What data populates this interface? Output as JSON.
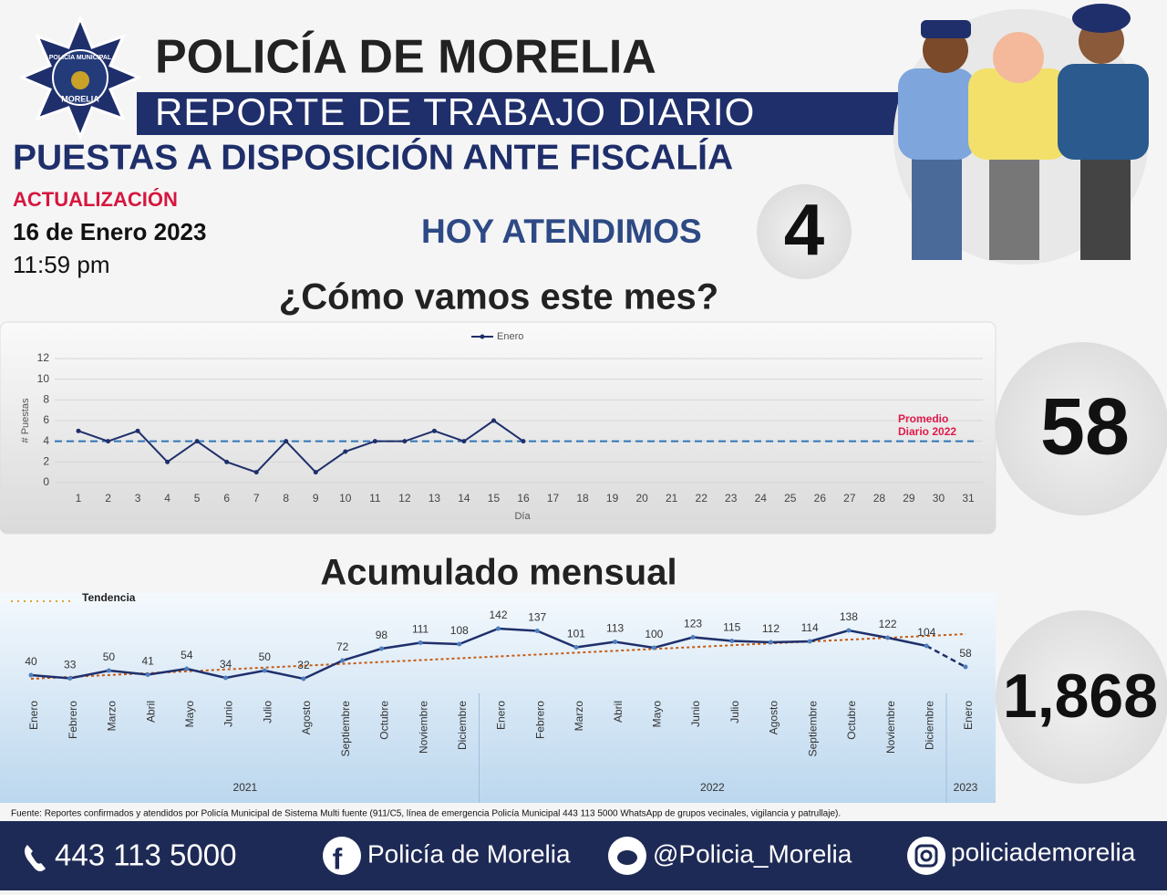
{
  "header": {
    "badge_top": "POLICÍA MUNICIPAL",
    "badge_bottom": "MORELIA",
    "title": "POLICÍA DE MORELIA",
    "subtitle": "REPORTE DE TRABAJO DIARIO",
    "heading": "PUESTAS A DISPOSICIÓN ANTE FISCALÍA",
    "update_label": "ACTUALIZACIÓN",
    "date": "16 de Enero 2023",
    "time": "11:59 pm",
    "today_label": "HOY ATENDIMOS",
    "today_value": 4
  },
  "chart_data": [
    {
      "type": "line",
      "title": "¿Cómo vamos este mes?",
      "x_label": "Día",
      "y_label": "# Puestas",
      "categories": [
        1,
        2,
        3,
        4,
        5,
        6,
        7,
        8,
        9,
        10,
        11,
        12,
        13,
        14,
        15,
        16,
        17,
        18,
        19,
        20,
        21,
        22,
        23,
        24,
        25,
        26,
        27,
        28,
        29,
        30,
        31
      ],
      "series": [
        {
          "name": "Enero",
          "color": "#1f2f6b",
          "values": [
            5,
            4,
            5,
            2,
            4,
            2,
            1,
            4,
            1,
            3,
            4,
            4,
            5,
            4,
            6,
            4,
            null,
            null,
            null,
            null,
            null,
            null,
            null,
            null,
            null,
            null,
            null,
            null,
            null,
            null,
            null
          ]
        }
      ],
      "ylim": [
        0,
        12
      ],
      "yticks": [
        0,
        2,
        4,
        6,
        8,
        10,
        12
      ],
      "grid": true,
      "legend": "top",
      "reference_line": {
        "value": 4,
        "label": "Promedio Diario 2022",
        "color": "#2e75b6",
        "label_color": "#e0194a"
      },
      "total": 58
    },
    {
      "type": "line",
      "title": "Acumulado mensual",
      "categories": [
        "Enero",
        "Febrero",
        "Marzo",
        "Abril",
        "Mayo",
        "Junio",
        "Julio",
        "Agosto",
        "Septiembre",
        "Octubre",
        "Noviembre",
        "Diciembre",
        "Enero",
        "Febrero",
        "Marzo",
        "Abril",
        "Mayo",
        "Junio",
        "Julio",
        "Agosto",
        "Septiembre",
        "Octubre",
        "Noviembre",
        "Diciembre",
        "Enero"
      ],
      "groups": [
        {
          "label": "2021",
          "count": 12
        },
        {
          "label": "2022",
          "count": 12
        },
        {
          "label": "2023",
          "count": 1
        }
      ],
      "series": [
        {
          "name": "Acumulado",
          "color": "#1f2f6b",
          "values": [
            40,
            33,
            50,
            41,
            54,
            34,
            50,
            32,
            72,
            98,
            111,
            108,
            142,
            137,
            101,
            113,
            100,
            123,
            115,
            112,
            114,
            138,
            122,
            104,
            58
          ]
        }
      ],
      "ylim": [
        0,
        200
      ],
      "trend": {
        "name": "Tendencia",
        "color": "#c55a11",
        "values": [
          32,
          130
        ]
      },
      "total": {
        "value": 1868,
        "label": "1,868"
      }
    }
  ],
  "footer": {
    "source": "Fuente: Reportes confirmados y atendidos por Policía Municipal de Sistema Multi fuente (911/C5, línea de emergencia Policía Municipal 443 113 5000 WhatsApp de grupos vecinales, vigilancia y patrullaje).",
    "phone": "443 113 5000",
    "facebook": "Policía de Morelia",
    "twitter": "@Policia_Morelia",
    "instagram": "policiademorelia"
  }
}
